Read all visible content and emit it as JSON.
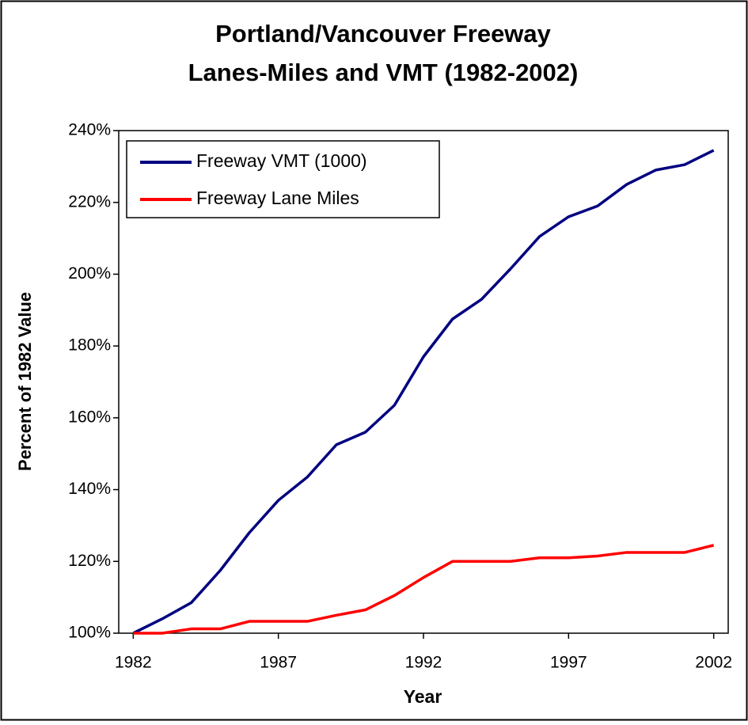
{
  "chart_data": {
    "type": "line",
    "title": "Portland/Vancouver Freeway",
    "subtitle": "Lanes-Miles and VMT (1982-2002)",
    "xlabel": "Year",
    "ylabel": "Percent of 1982 Value",
    "x": [
      1982,
      1983,
      1984,
      1985,
      1986,
      1987,
      1988,
      1989,
      1990,
      1991,
      1992,
      1993,
      1994,
      1995,
      1996,
      1997,
      1998,
      1999,
      2000,
      2001,
      2002
    ],
    "series": [
      {
        "name": "Freeway VMT (1000)",
        "color": "#000080",
        "values": [
          100,
          104,
          108.5,
          117.5,
          128,
          137,
          143.5,
          152.5,
          156,
          163.5,
          177,
          187.5,
          193,
          201.5,
          210.5,
          216,
          219,
          225,
          229,
          230.5,
          234.5
        ]
      },
      {
        "name": "Freeway Lane Miles",
        "color": "#ff0000",
        "values": [
          100,
          100,
          101.2,
          101.2,
          103.3,
          103.3,
          103.3,
          105,
          106.5,
          110.5,
          115.5,
          120,
          120,
          120,
          121,
          121,
          121.5,
          122.5,
          122.5,
          122.5,
          124.5
        ]
      }
    ],
    "xlim": [
      1981.5,
      2002.5
    ],
    "xticks": [
      1982,
      1987,
      1992,
      1997,
      2002
    ],
    "ylim": [
      100,
      240
    ],
    "yticks": [
      {
        "value": 100,
        "label": "100%"
      },
      {
        "value": 120,
        "label": "120%"
      },
      {
        "value": 140,
        "label": "140%"
      },
      {
        "value": 160,
        "label": "160%"
      },
      {
        "value": 180,
        "label": "180%"
      },
      {
        "value": 200,
        "label": "200%"
      },
      {
        "value": 220,
        "label": "220%"
      },
      {
        "value": 240,
        "label": "240%"
      }
    ],
    "legend": "upper left"
  }
}
